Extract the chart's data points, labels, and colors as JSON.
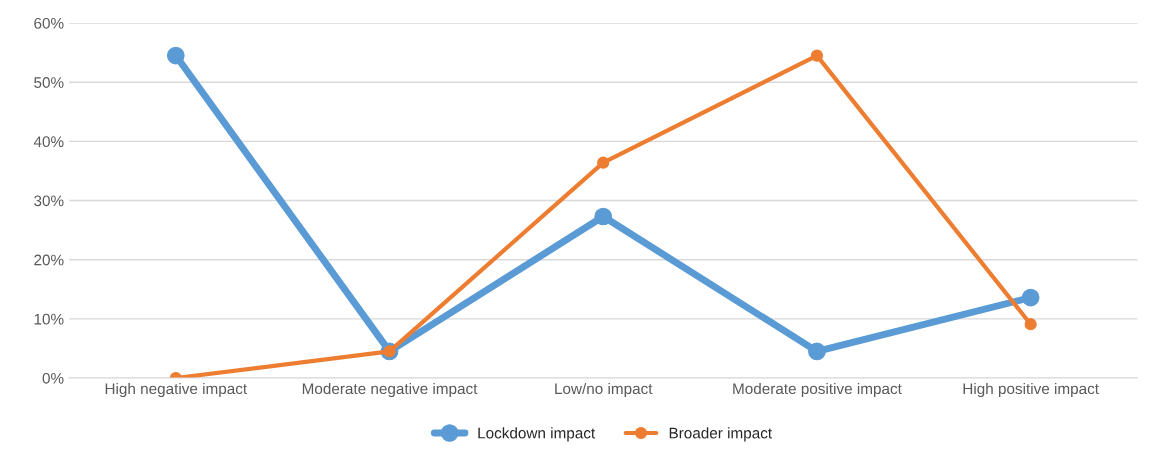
{
  "chart_data": {
    "type": "line",
    "categories": [
      "High negative impact",
      "Moderate negative impact",
      "Low/no impact",
      "Moderate positive impact",
      "High positive impact"
    ],
    "series": [
      {
        "name": "Lockdown impact",
        "color": "#5b9bd5",
        "values": [
          54.5,
          4.5,
          27.3,
          4.5,
          13.6
        ]
      },
      {
        "name": "Broader impact",
        "color": "#ed7d31",
        "values": [
          0,
          4.5,
          36.4,
          54.5,
          9.1
        ]
      }
    ],
    "ylim": [
      0,
      60
    ],
    "yticks": [
      {
        "value": 0,
        "label": "0%"
      },
      {
        "value": 10,
        "label": "10%"
      },
      {
        "value": 20,
        "label": "20%"
      },
      {
        "value": 30,
        "label": "30%"
      },
      {
        "value": 40,
        "label": "40%"
      },
      {
        "value": 50,
        "label": "50%"
      },
      {
        "value": 60,
        "label": "60%"
      }
    ],
    "grid": "y",
    "legend": "bottom",
    "marker": "circle",
    "line_style": "solid"
  }
}
